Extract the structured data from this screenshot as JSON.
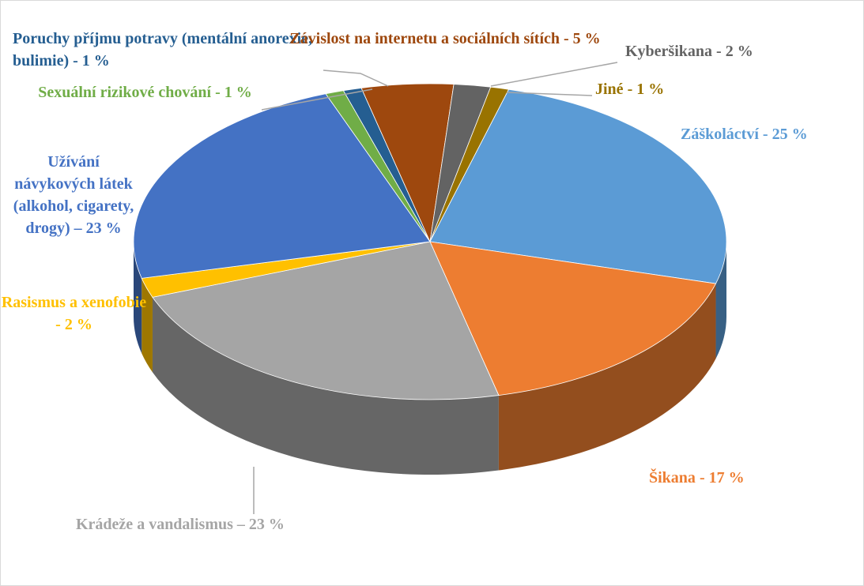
{
  "chart_data": {
    "type": "pie3d",
    "categories": [
      "Poruchy příjmu potravy (mentální anorexie, bulimie)",
      "Závislost na internetu a sociálních sítích",
      "Kyberšikana",
      "Jiné",
      "Záškoláctví",
      "Šikana",
      "Krádeže a vandalismus",
      "Rasismus a xenofobie",
      "Užívání návykových látek (alkohol, cigarety, drogy)",
      "Sexuální rizikové chování"
    ],
    "values": [
      1,
      5,
      2,
      1,
      25,
      17,
      23,
      2,
      23,
      1
    ],
    "value_labels": [
      "- 1 %",
      "- 5 %",
      "- 2 %",
      "- 1 %",
      "- 25 %",
      "- 17 %",
      "– 23 %",
      "- 2 %",
      "– 23 %",
      "- 1 %"
    ],
    "colors": [
      "#255e91",
      "#9e480e",
      "#636363",
      "#997300",
      "#5b9bd5",
      "#ed7d31",
      "#a5a5a5",
      "#ffc000",
      "#4472c4",
      "#70ad47"
    ]
  }
}
